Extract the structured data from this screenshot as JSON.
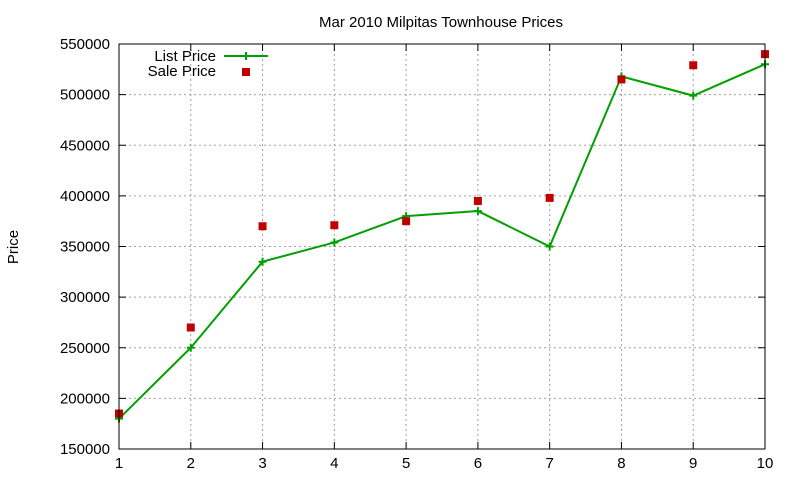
{
  "chart_data": {
    "type": "line",
    "title": "Mar 2010 Milpitas Townhouse Prices",
    "xlabel": "",
    "ylabel": "Price",
    "xlim": [
      1,
      10
    ],
    "ylim": [
      150000,
      550000
    ],
    "x_ticks": [
      1,
      2,
      3,
      4,
      5,
      6,
      7,
      8,
      9,
      10
    ],
    "y_ticks": [
      150000,
      200000,
      250000,
      300000,
      350000,
      400000,
      450000,
      500000,
      550000
    ],
    "grid": true,
    "legend_position": "top-left",
    "x": [
      1,
      2,
      3,
      4,
      5,
      6,
      7,
      8,
      9,
      10
    ],
    "series": [
      {
        "name": "List Price",
        "style": "line-with-plus-markers",
        "color": "#00a000",
        "values": [
          180000,
          250000,
          335000,
          354000,
          380000,
          385000,
          350000,
          518000,
          499000,
          530000
        ]
      },
      {
        "name": "Sale Price",
        "style": "square-markers",
        "color": "#c00000",
        "values": [
          185000,
          270000,
          370000,
          371000,
          375000,
          395000,
          398000,
          515000,
          529000,
          540000
        ]
      }
    ]
  }
}
